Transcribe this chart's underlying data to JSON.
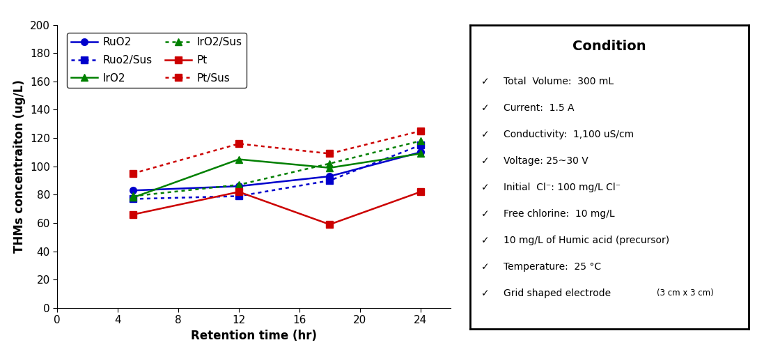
{
  "x": [
    5,
    12,
    18,
    24
  ],
  "series": {
    "RuO2": {
      "y": [
        83,
        86,
        93,
        110
      ],
      "color": "#0000CC",
      "linestyle": "solid",
      "marker": "o",
      "label": "RuO2"
    },
    "RuO2_Sus": {
      "y": [
        77,
        79,
        90,
        115
      ],
      "color": "#0000CC",
      "linestyle": "dotted",
      "marker": "s",
      "label": "Ruo2/Sus"
    },
    "IrO2": {
      "y": [
        78,
        105,
        99,
        109
      ],
      "color": "#008000",
      "linestyle": "solid",
      "marker": "^",
      "label": "IrO2"
    },
    "IrO2_Sus": {
      "y": [
        79,
        87,
        102,
        118
      ],
      "color": "#008000",
      "linestyle": "dotted",
      "marker": "^",
      "label": "IrO2/Sus"
    },
    "Pt": {
      "y": [
        66,
        82,
        59,
        82
      ],
      "color": "#CC0000",
      "linestyle": "solid",
      "marker": "s",
      "label": "Pt"
    },
    "Pt_Sus": {
      "y": [
        95,
        116,
        109,
        125
      ],
      "color": "#CC0000",
      "linestyle": "dotted",
      "marker": "s",
      "label": "Pt/Sus"
    }
  },
  "xlabel": "Retention time (hr)",
  "ylabel": "THMs concentraiton (ug/L)",
  "xlim": [
    0,
    26
  ],
  "ylim": [
    0,
    200
  ],
  "xticks": [
    0,
    4,
    8,
    12,
    16,
    20,
    24
  ],
  "yticks": [
    0,
    20,
    40,
    60,
    80,
    100,
    120,
    140,
    160,
    180,
    200
  ],
  "condition_title": "Condition",
  "condition_items": [
    "Total  Volume:  300 mL",
    "Current:  1.5 A",
    "Conductivity:  1,100 uS/cm",
    "Voltage: 25~30 V",
    "Initial  Cl⁻: 100 mg/L Cl⁻",
    "Free chlorine:  10 mg/L",
    "10 mg/L of Humic acid (precursor)",
    "Temperature:  25 °C",
    "Grid shaped electrode (3 cm x 3 cm)"
  ],
  "condition_title_fontsize": 14,
  "condition_item_fontsize": 10,
  "condition_last_main_text": "Grid shaped electrode ",
  "condition_last_small_text": "(3 cm x 3 cm)",
  "background_color": "#FFFFFF"
}
